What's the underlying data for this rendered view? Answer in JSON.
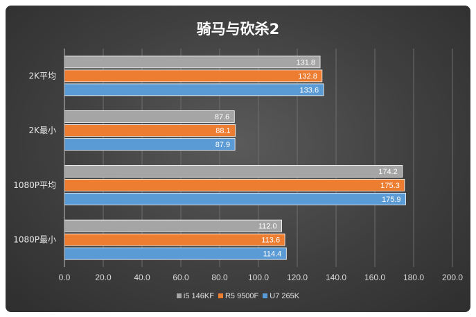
{
  "chart_data": {
    "type": "bar",
    "orientation": "horizontal",
    "title": "骑马与砍杀2",
    "categories": [
      "2K平均",
      "2K最小",
      "1080P平均",
      "1080P最小"
    ],
    "series": [
      {
        "name": "i5 146KF",
        "color": "#a5a5a5",
        "values": [
          131.8,
          87.6,
          174.2,
          112.0
        ]
      },
      {
        "name": "R5 9500F",
        "color": "#ed7d31",
        "values": [
          132.8,
          88.1,
          175.3,
          113.6
        ]
      },
      {
        "name": "U7 265K",
        "color": "#5b9bd5",
        "values": [
          133.6,
          87.9,
          175.9,
          114.4
        ]
      }
    ],
    "xlim": [
      0,
      200
    ],
    "xticks": [
      "0.0",
      "20.0",
      "40.0",
      "60.0",
      "80.0",
      "100.0",
      "120.0",
      "140.0",
      "160.0",
      "180.0",
      "200.0"
    ],
    "grid": true,
    "legend": "bottom"
  }
}
